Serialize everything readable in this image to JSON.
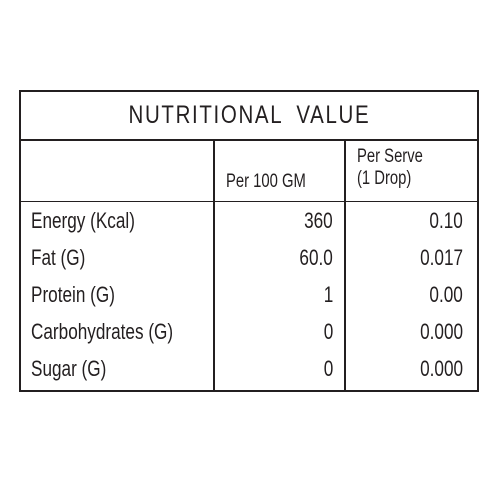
{
  "table": {
    "title": "NUTRITIONAL VALUE",
    "headers": {
      "per_100": "Per 100 GM",
      "per_serve_line1": "Per Serve",
      "per_serve_line2": "(1 Drop)"
    },
    "rows": [
      {
        "label": "Energy (Kcal)",
        "per_100": "360",
        "per_serve": "0.10"
      },
      {
        "label": "Fat (G)",
        "per_100": "60.0",
        "per_serve": "0.017"
      },
      {
        "label": "Protein (G)",
        "per_100": "1",
        "per_serve": "0.00"
      },
      {
        "label": "Carbohydrates (G)",
        "per_100": "0",
        "per_serve": "0.000"
      },
      {
        "label": "Sugar (G)",
        "per_100": "0",
        "per_serve": "0.000"
      }
    ]
  }
}
